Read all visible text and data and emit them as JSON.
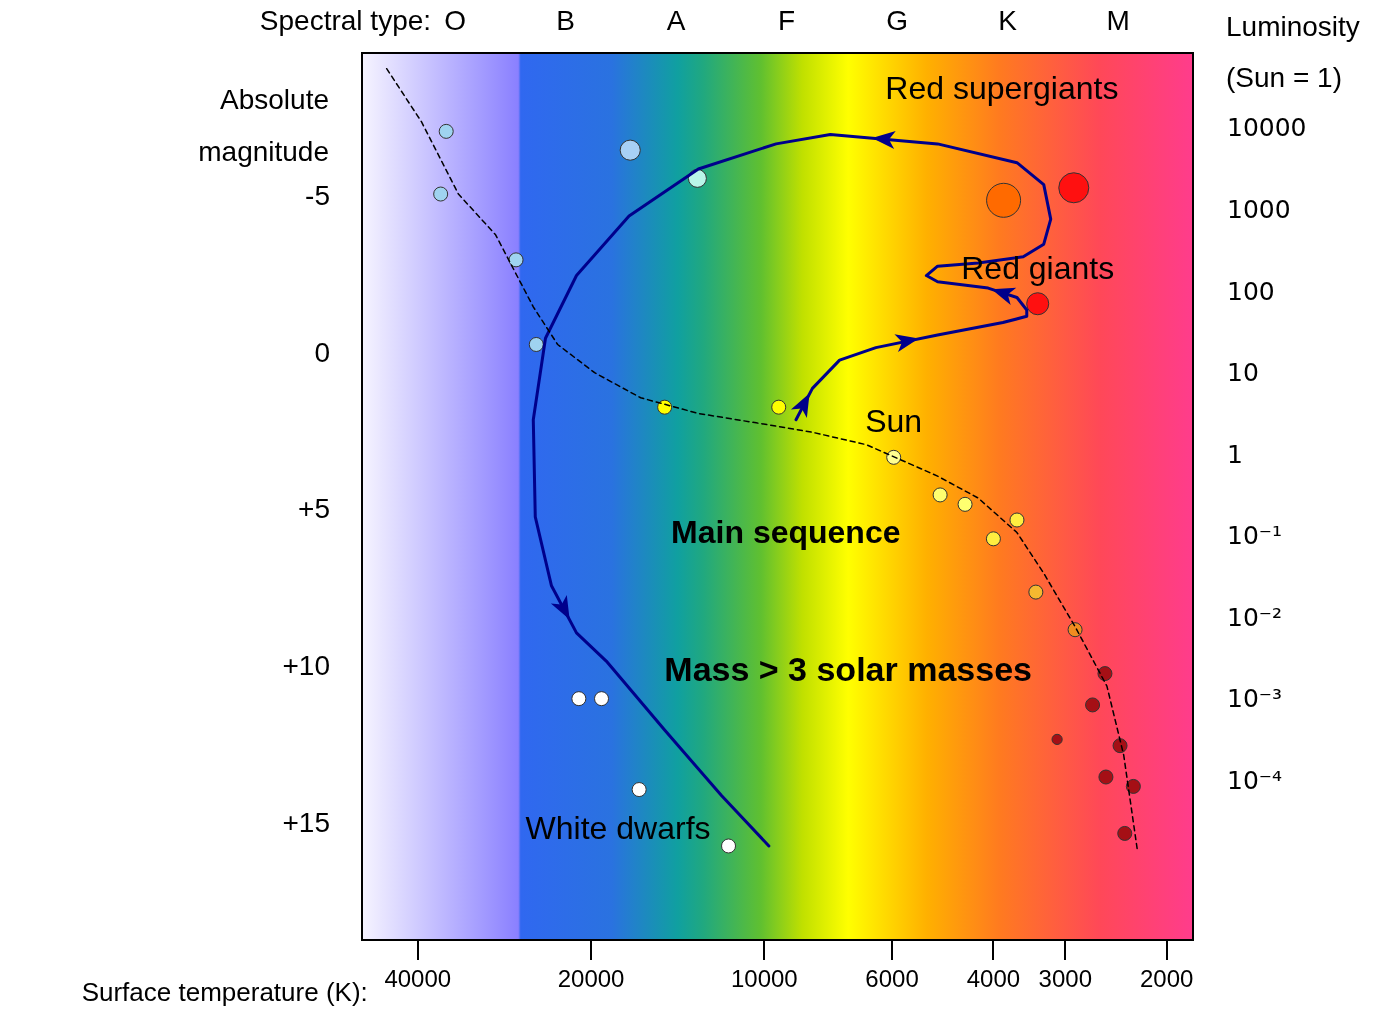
{
  "chart_data": {
    "type": "bubble",
    "xlabel": "Surface temperature (K):",
    "ylabel": "Absolute magnitude",
    "y2label": "Luminosity (Sun = 1)",
    "x2label": "Spectral type:",
    "log": "x",
    "xlim": [
      50000,
      1800
    ],
    "xticks": [
      40000,
      20000,
      10000,
      6000,
      4000,
      3000,
      2000
    ],
    "ylim": [
      18.7,
      -9.6
    ],
    "yticks": [
      -5,
      0,
      {
        "value": 5,
        "label": "+5"
      },
      {
        "value": 10,
        "label": "+10"
      },
      {
        "value": 15,
        "label": "+15"
      }
    ],
    "series": [
      {
        "type": "line",
        "color": "#000000",
        "line_style": "dashed",
        "marker": "none",
        "x": [
          45300,
          39400,
          34000,
          29300,
          25200,
          22860,
          19720,
          16400,
          13020,
          10330,
          8250,
          6640,
          5760,
          5000,
          4250,
          3640,
          3270,
          2885,
          2540,
          2375,
          2250
        ],
        "values": [
          -9.1,
          -7.4,
          -5.1,
          -3.8,
          -1.5,
          -0.3,
          0.6,
          1.4,
          1.9,
          2.2,
          2.5,
          2.9,
          3.4,
          3.9,
          4.6,
          5.7,
          7.0,
          8.7,
          10.6,
          12.8,
          15.8
        ]
      },
      {
        "type": "line",
        "color": "#00008b",
        "line_style": "solid",
        "marker": "none",
        "x": [
          8810,
          8250,
          7400,
          6400,
          5000,
          3850,
          3500,
          3500,
          3640,
          4085,
          5000,
          5230,
          5000,
          4250,
          3550,
          3270,
          3180,
          3270,
          3640,
          5000,
          7680,
          9540,
          13020,
          17180,
          21200,
          24000,
          25200,
          25000,
          23430,
          21200,
          18820,
          14900,
          11860,
          9820
        ],
        "values": [
          2.1,
          1.1,
          0.2,
          -0.2,
          -0.6,
          -1.0,
          -1.2,
          -1.4,
          -1.8,
          -2.1,
          -2.3,
          -2.5,
          -2.8,
          -2.9,
          -3.1,
          -3.5,
          -4.3,
          -5.4,
          -6.1,
          -6.7,
          -7.0,
          -6.7,
          -5.9,
          -4.4,
          -2.5,
          -0.5,
          2.1,
          5.2,
          7.4,
          8.9,
          9.8,
          12.0,
          14.1,
          15.7
        ]
      },
      {
        "x": [
          35700,
          36500,
          27000,
          24900,
          17100,
          13070,
          14900,
          9440,
          5960,
          4950,
          4480,
          4000,
          3640,
          3375,
          2885,
          2560,
          2690,
          3100,
          2410,
          2550,
          2285,
          2365,
          3840,
          2900,
          3350,
          21000,
          19180,
          16500,
          11540
        ],
        "values": [
          -7.1,
          -5.1,
          -3.0,
          -0.3,
          -6.5,
          -5.6,
          1.7,
          1.7,
          3.3,
          4.5,
          4.8,
          5.9,
          5.3,
          7.6,
          8.8,
          10.2,
          11.2,
          12.3,
          12.5,
          13.5,
          13.8,
          15.3,
          -4.9,
          -5.3,
          -1.6,
          11.0,
          11.0,
          13.9,
          15.7
        ],
        "sizes": [
          0.17,
          0.17,
          0.17,
          0.17,
          0.35,
          0.28,
          0.17,
          0.17,
          0.17,
          0.17,
          0.17,
          0.17,
          0.17,
          0.17,
          0.17,
          0.17,
          0.17,
          0.09,
          0.17,
          0.17,
          0.17,
          0.17,
          1,
          0.78,
          0.42,
          0.17,
          0.17,
          0.17,
          0.17
        ],
        "colors": [
          "#9fd3f0",
          "#9fd3f0",
          "#9fd3f0",
          "#9fd3f0",
          "#a8d0f5",
          "#b8f5e8",
          "#ffff00",
          "#ffff00",
          "#ffff90",
          "#ffff70",
          "#ffff70",
          "#ffee40",
          "#ffee40",
          "#f5b830",
          "#f08c20",
          "#a50f15",
          "#a50f15",
          "#a50f15",
          "#a50f15",
          "#a50f15",
          "#a50f15",
          "#a50f15",
          "#ff6a00",
          "#ff1010",
          "#ff1010",
          "#ffffff",
          "#ffffff",
          "#ffffff",
          "#ffffff"
        ]
      }
    ],
    "annotations": [
      "Red supergiants",
      "Main sequence",
      "Mass > 3 solar masses",
      {
        "text": "Red giants",
        "x": 3350,
        "y": -1.6
      },
      {
        "text": "Sun",
        "x": 5960,
        "y": 3.3
      },
      {
        "text": "White dwarfs",
        "x": 11540,
        "y": 15.7
      },
      "O",
      "B",
      "A",
      "F",
      "G",
      "K",
      "M",
      "10000",
      "1000",
      "100",
      "10",
      "1",
      "10⁻¹",
      "10⁻²",
      "10⁻³",
      "10⁻⁴"
    ]
  }
}
